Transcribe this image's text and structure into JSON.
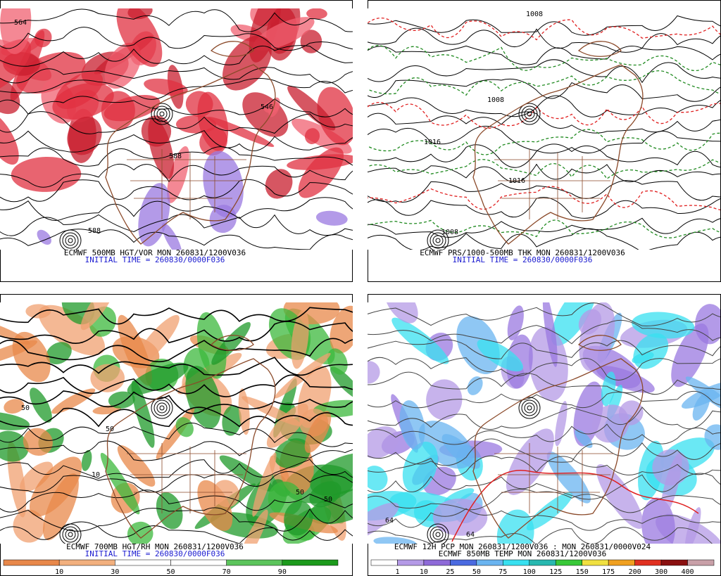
{
  "panels": [
    {
      "caption": "ECMWF 500MB HGT/VOR MON 260831/1200V036",
      "initial_time": "INITIAL TIME = 260830/0000F036",
      "map_labels": [
        "588",
        "588",
        "564",
        "546"
      ]
    },
    {
      "caption": "ECMWF PRS/1000-500MB THK MON 260831/1200V036",
      "initial_time": "INITIAL TIME = 260830/0000F036",
      "map_labels": [
        "1008",
        "1008",
        "1016",
        "1016",
        "1008"
      ]
    },
    {
      "caption": "ECMWF 700MB HGT/RH MON 260831/1200V036",
      "initial_time": "INITIAL TIME = 260830/0000F036",
      "map_labels": [
        "50",
        "50",
        "10",
        "50",
        "50"
      ]
    },
    {
      "caption": "ECMWF 12H PCP MON 260831/1200V036 : MON 260831/0000V024",
      "initial_time": "ECMWF 850MB TEMP MON 260831/1200V036",
      "map_labels": [
        "64",
        "64"
      ]
    }
  ],
  "colorbars": [
    {
      "labels": [
        "10",
        "30",
        "50",
        "70",
        "90"
      ],
      "colors": [
        "#e8884a",
        "#f2b07e",
        "#ffffff",
        "#ffffff",
        "#5cc45c",
        "#1c9a1c"
      ]
    },
    {
      "labels": [
        "1",
        "10",
        "25",
        "50",
        "75",
        "100",
        "125",
        "150",
        "175",
        "200",
        "300",
        "400"
      ],
      "colors": [
        "#ffffff",
        "#b49ae6",
        "#8e6ad8",
        "#4a6ae0",
        "#6ab4f0",
        "#38e0f0",
        "#28b8b0",
        "#38c838",
        "#f0e040",
        "#f0a020",
        "#e03020",
        "#8a1010",
        "#c8a0a8"
      ]
    }
  ]
}
